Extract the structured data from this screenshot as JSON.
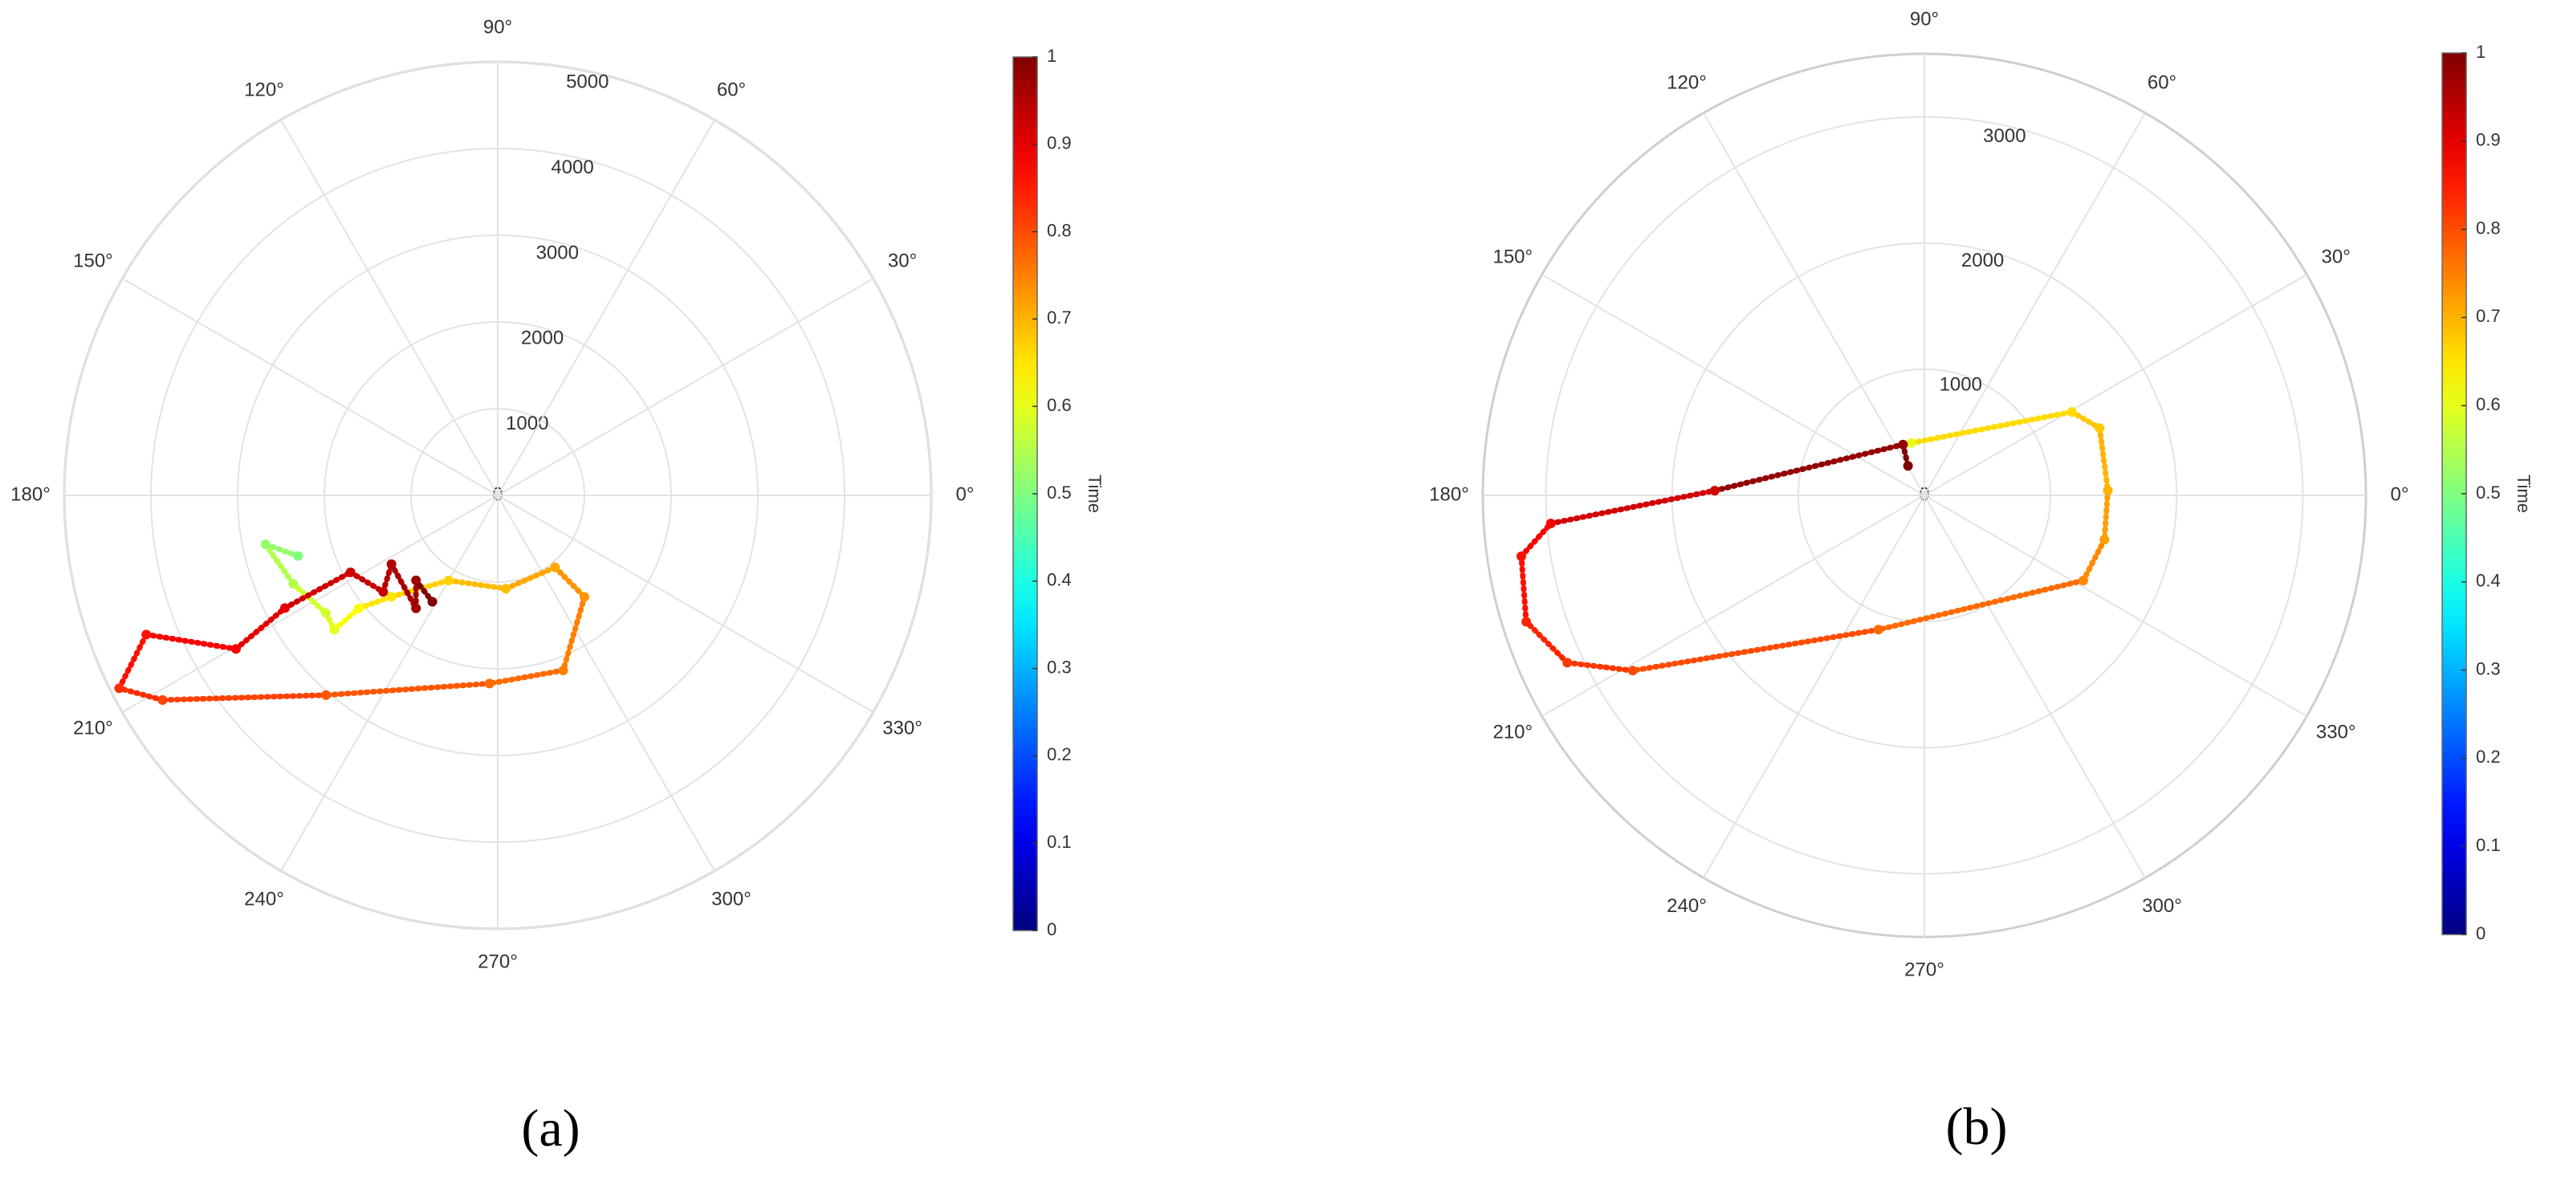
{
  "chart_data": [
    {
      "type": "polar",
      "colormap": "jet",
      "panel_label": "(a)",
      "rlim": [
        0,
        5000
      ],
      "rticks": [
        0,
        1000,
        2000,
        3000,
        4000,
        5000
      ],
      "theta_ticks": [
        {
          "value": 0,
          "label": "0°"
        },
        {
          "value": 30,
          "label": "30°"
        },
        {
          "value": 60,
          "label": "60°"
        },
        {
          "value": 90,
          "label": "90°"
        },
        {
          "value": 120,
          "label": "120°"
        },
        {
          "value": 150,
          "label": "150°"
        },
        {
          "value": 180,
          "label": "180°"
        },
        {
          "value": 210,
          "label": "210°"
        },
        {
          "value": 240,
          "label": "240°"
        },
        {
          "value": 270,
          "label": "270°"
        },
        {
          "value": 300,
          "label": "300°"
        },
        {
          "value": 330,
          "label": "330°"
        }
      ],
      "series": [
        {
          "theta": [
            196.9,
            191.9,
            203.4,
            214.4,
            219.4,
            219.1,
            223.6,
            240,
            275,
            308.5,
            310.5,
            290.5,
            267.5,
            229.3,
            211.4,
            207,
            201.6,
            210.4,
            207.9,
            207.6,
            220.1,
            212.9,
            234.1,
            226.1,
            238.4
          ],
          "r": [
            2406,
            2738,
            2569,
            2402,
            2440,
            2066,
            1695,
            1133,
            1080,
            1061,
            1540,
            2155,
            2172,
            3038,
            4530,
            4900,
            4360,
            3500,
            2777,
            1916,
            1727,
            1460,
            1608,
            1360,
            1440
          ],
          "time": [
            0.5,
            0.52,
            0.55,
            0.58,
            0.6,
            0.62,
            0.65,
            0.67,
            0.69,
            0.71,
            0.73,
            0.75,
            0.77,
            0.79,
            0.81,
            0.83,
            0.86,
            0.88,
            0.9,
            0.92,
            0.93,
            0.95,
            0.96,
            0.97,
            1.0
          ]
        }
      ],
      "colorbar": {
        "label": "Time",
        "lim": [
          0,
          1
        ],
        "ticks": [
          0,
          0.1,
          0.2,
          0.3,
          0.4,
          0.5,
          0.6,
          0.7,
          0.8,
          0.9,
          1
        ]
      }
    },
    {
      "type": "polar",
      "colormap": "jet",
      "panel_label": "(b)",
      "rlim": [
        0,
        3500
      ],
      "rticks": [
        0,
        1000,
        2000,
        3000
      ],
      "theta_ticks": [
        {
          "value": 0,
          "label": "0°"
        },
        {
          "value": 30,
          "label": "30°"
        },
        {
          "value": 60,
          "label": "60°"
        },
        {
          "value": 90,
          "label": "90°"
        },
        {
          "value": 120,
          "label": "120°"
        },
        {
          "value": 150,
          "label": "150°"
        },
        {
          "value": 180,
          "label": "180°"
        },
        {
          "value": 210,
          "label": "210°"
        },
        {
          "value": 240,
          "label": "240°"
        },
        {
          "value": 270,
          "label": "270°"
        },
        {
          "value": 300,
          "label": "300°"
        },
        {
          "value": 330,
          "label": "330°"
        }
      ],
      "series": [
        {
          "theta": [
            104,
            29.5,
            21,
            1.5,
            346.2,
            331.8,
            251.1,
            211,
            205.1,
            197.6,
            188.6,
            184.3,
            178.7,
            112.8,
            119
          ],
          "r": [
            428,
            1343,
            1488,
            1455,
            1470,
            1429,
            1125,
            2697,
            3126,
            3311,
            3231,
            2969,
            1662,
            437,
            267
          ],
          "time": [
            0.6,
            0.66,
            0.68,
            0.7,
            0.72,
            0.74,
            0.77,
            0.8,
            0.82,
            0.84,
            0.86,
            0.88,
            0.92,
            0.98,
            1.0
          ]
        }
      ],
      "colorbar": {
        "label": "Time",
        "lim": [
          0,
          1
        ],
        "ticks": [
          0,
          0.1,
          0.2,
          0.3,
          0.4,
          0.5,
          0.6,
          0.7,
          0.8,
          0.9,
          1
        ]
      }
    }
  ]
}
